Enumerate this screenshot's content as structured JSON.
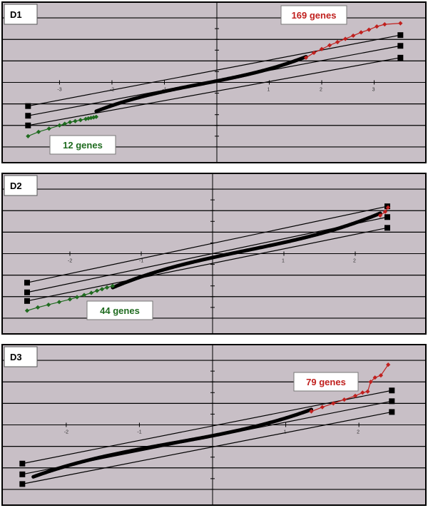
{
  "colors": {
    "background": "#c8bfc6",
    "normal_points": "#000000",
    "low_outliers": "#1f6b1f",
    "high_outliers": "#c0201e"
  },
  "chart_data": [
    {
      "type": "scatter",
      "panel_label": "D1",
      "xlim": [
        -4,
        4
      ],
      "ylim": [
        -7,
        7
      ],
      "x_tick_labels": [
        "-3",
        "-2",
        "-1",
        "",
        "1",
        "2",
        "3"
      ],
      "x_ticks": [
        -3,
        -2,
        -1,
        0,
        1,
        2,
        3
      ],
      "callouts": [
        {
          "text": "169 genes",
          "color": "#c0201e"
        },
        {
          "text": "12 genes",
          "color": "#1f6b1f"
        }
      ],
      "envelopes": [
        {
          "x": [
            -3.6,
            3.5
          ],
          "y": [
            -2.2,
            4.4
          ]
        },
        {
          "x": [
            -3.6,
            3.5
          ],
          "y": [
            -3.1,
            3.4
          ]
        },
        {
          "x": [
            -3.6,
            3.5
          ],
          "y": [
            -4.0,
            2.3
          ]
        }
      ],
      "low_tail": {
        "x": [
          -3.6,
          -3.4,
          -3.2,
          -3.0,
          -2.9,
          -2.8,
          -2.7,
          -2.6,
          -2.5,
          -2.45,
          -2.4,
          -2.35,
          -2.3
        ],
        "y": [
          -5.0,
          -4.6,
          -4.3,
          -4.0,
          -3.85,
          -3.7,
          -3.6,
          -3.5,
          -3.4,
          -3.35,
          -3.3,
          -3.25,
          -3.2
        ]
      },
      "bulk": {
        "x0": -2.3,
        "x1": 1.7,
        "y0": -2.5,
        "y1": 2.2
      },
      "high_tail": {
        "x": [
          1.7,
          1.85,
          2.0,
          2.15,
          2.3,
          2.45,
          2.6,
          2.75,
          2.9,
          3.05,
          3.2,
          3.5
        ],
        "y": [
          2.3,
          2.75,
          3.1,
          3.45,
          3.75,
          4.05,
          4.35,
          4.65,
          4.9,
          5.2,
          5.4,
          5.5
        ]
      }
    },
    {
      "type": "scatter",
      "panel_label": "D2",
      "xlim": [
        -3,
        3
      ],
      "ylim": [
        -7,
        7
      ],
      "x_tick_labels": [
        "-2",
        "-1",
        "",
        "1",
        "2"
      ],
      "x_ticks": [
        -2,
        -1,
        0,
        1,
        2
      ],
      "callouts": [
        {
          "text": "44 genes",
          "color": "#1f6b1f"
        }
      ],
      "envelopes": [
        {
          "x": [
            -2.6,
            2.45
          ],
          "y": [
            -2.7,
            4.4
          ]
        },
        {
          "x": [
            -2.6,
            2.45
          ],
          "y": [
            -3.6,
            3.4
          ]
        },
        {
          "x": [
            -2.6,
            2.45
          ],
          "y": [
            -4.4,
            2.4
          ]
        }
      ],
      "low_tail": {
        "x": [
          -2.6,
          -2.45,
          -2.3,
          -2.15,
          -2.0,
          -1.9,
          -1.8,
          -1.7,
          -1.62,
          -1.55,
          -1.48,
          -1.4
        ],
        "y": [
          -5.3,
          -5.0,
          -4.75,
          -4.5,
          -4.25,
          -4.05,
          -3.85,
          -3.65,
          -3.45,
          -3.3,
          -3.15,
          -3.0
        ]
      },
      "bulk": {
        "x0": -1.4,
        "x1": 2.35,
        "y0": -2.9,
        "y1": 3.5
      },
      "high_tail": {
        "x": [
          2.35,
          2.42,
          2.46
        ],
        "y": [
          3.55,
          3.9,
          4.3
        ]
      }
    },
    {
      "type": "scatter",
      "panel_label": "D3",
      "xlim": [
        -3,
        3
      ],
      "ylim": [
        -7,
        7
      ],
      "x_tick_labels": [
        "-2",
        "-1",
        "",
        "1",
        "2"
      ],
      "x_ticks": [
        -2,
        -1,
        0,
        1,
        2
      ],
      "callouts": [
        {
          "text": "79 genes",
          "color": "#c0201e"
        }
      ],
      "envelopes": [
        {
          "x": [
            -2.6,
            2.45
          ],
          "y": [
            -3.6,
            3.2
          ]
        },
        {
          "x": [
            -2.6,
            2.45
          ],
          "y": [
            -4.6,
            2.2
          ]
        },
        {
          "x": [
            -2.6,
            2.45
          ],
          "y": [
            -5.5,
            1.2
          ]
        }
      ],
      "low_tail": {
        "x": [],
        "y": []
      },
      "bulk": {
        "x0": -2.45,
        "x1": 1.35,
        "y0": -4.6,
        "y1": 1.2
      },
      "high_tail": {
        "x": [
          1.35,
          1.5,
          1.65,
          1.8,
          1.95,
          2.05,
          2.12,
          2.16,
          2.22,
          2.3,
          2.4
        ],
        "y": [
          1.25,
          1.65,
          2.0,
          2.35,
          2.7,
          3.0,
          3.1,
          4.0,
          4.4,
          4.6,
          5.6
        ]
      }
    }
  ]
}
